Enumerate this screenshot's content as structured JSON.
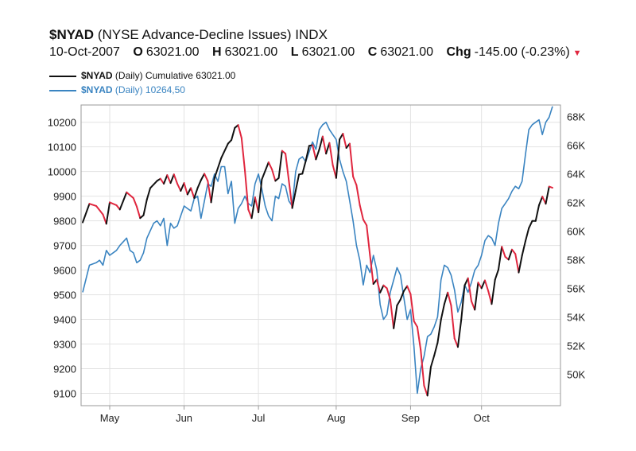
{
  "header": {
    "symbol": "$NYAD",
    "name": "(NYSE Advance-Decline Issues) INDX",
    "date": "10-Oct-2007",
    "o_label": "O",
    "o": "63021.00",
    "h_label": "H",
    "h": "63021.00",
    "l_label": "L",
    "l": "63021.00",
    "c_label": "C",
    "c": "63021.00",
    "chg_label": "Chg",
    "chg": "-145.00 (-0.23%)",
    "down_icon": "triangle-down-icon"
  },
  "legend": [
    {
      "symbol": "$NYAD",
      "text": "(Daily) Cumulative 63021.00",
      "color": "#111111"
    },
    {
      "symbol": "$NYAD",
      "text": "(Daily) 10264,50",
      "color": "#3a84c1"
    }
  ],
  "colors": {
    "up": "#111111",
    "down": "#e0263e",
    "daily": "#3a84c1",
    "grid": "#e2e2e2",
    "frame": "#9a9a9a"
  },
  "chart_data": {
    "type": "line",
    "x_tick_labels": [
      "May",
      "Jun",
      "Jul",
      "Aug",
      "Sep",
      "Oct"
    ],
    "x_tick_positions": [
      8,
      30,
      52,
      75,
      97,
      118
    ],
    "x_range": [
      0,
      139
    ],
    "left_axis": {
      "ticks": [
        9100,
        9200,
        9300,
        9400,
        9500,
        9600,
        9700,
        9800,
        9900,
        10000,
        10100,
        10200
      ],
      "range": [
        9050,
        10270
      ]
    },
    "right_axis": {
      "ticks": [
        50000,
        52000,
        54000,
        56000,
        58000,
        60000,
        62000,
        64000,
        66000,
        68000
      ],
      "labels": [
        "50K",
        "52K",
        "54K",
        "56K",
        "58K",
        "60K",
        "62K",
        "64K",
        "66K",
        "68K"
      ],
      "range": [
        47800,
        68800
      ]
    },
    "grid": true,
    "series": [
      {
        "name": "$NYAD (Daily) Cumulative 63021.00",
        "axis": "right",
        "coloring": "black when rising, red when falling",
        "points": [
          [
            0,
            60600
          ],
          [
            2,
            61900
          ],
          [
            4,
            61750
          ],
          [
            6,
            61150
          ],
          [
            7,
            60500
          ],
          [
            8,
            62000
          ],
          [
            10,
            61800
          ],
          [
            11,
            61500
          ],
          [
            13,
            62700
          ],
          [
            15,
            62300
          ],
          [
            16,
            61700
          ],
          [
            17,
            60900
          ],
          [
            18,
            61100
          ],
          [
            19,
            62200
          ],
          [
            20,
            63000
          ],
          [
            22,
            63500
          ],
          [
            23,
            63650
          ],
          [
            24,
            63300
          ],
          [
            25,
            63900
          ],
          [
            26,
            63350
          ],
          [
            27,
            63950
          ],
          [
            28,
            63300
          ],
          [
            29,
            62800
          ],
          [
            30,
            63350
          ],
          [
            31,
            62550
          ],
          [
            32,
            63000
          ],
          [
            33,
            62300
          ],
          [
            34,
            63000
          ],
          [
            35,
            63550
          ],
          [
            36,
            64000
          ],
          [
            37,
            63500
          ],
          [
            38,
            62000
          ],
          [
            39,
            63700
          ],
          [
            41,
            65100
          ],
          [
            43,
            66100
          ],
          [
            44,
            66350
          ],
          [
            45,
            67200
          ],
          [
            46,
            67400
          ],
          [
            47,
            66500
          ],
          [
            48,
            64200
          ],
          [
            49,
            61500
          ],
          [
            50,
            60900
          ],
          [
            51,
            62350
          ],
          [
            52,
            61300
          ],
          [
            53,
            63600
          ],
          [
            55,
            64800
          ],
          [
            56,
            64300
          ],
          [
            57,
            63500
          ],
          [
            58,
            63700
          ],
          [
            59,
            65600
          ],
          [
            60,
            65400
          ],
          [
            61,
            63500
          ],
          [
            62,
            61600
          ],
          [
            63,
            62800
          ],
          [
            64,
            63950
          ],
          [
            65,
            64000
          ],
          [
            66,
            64900
          ],
          [
            67,
            65950
          ],
          [
            68,
            66000
          ],
          [
            69,
            65000
          ],
          [
            70,
            65700
          ],
          [
            71,
            66600
          ],
          [
            72,
            65400
          ],
          [
            73,
            66150
          ],
          [
            74,
            64600
          ],
          [
            75,
            63700
          ],
          [
            76,
            66400
          ],
          [
            77,
            66800
          ],
          [
            78,
            65800
          ],
          [
            79,
            66100
          ],
          [
            80,
            63800
          ],
          [
            81,
            63200
          ],
          [
            82,
            61800
          ],
          [
            83,
            60800
          ],
          [
            84,
            60400
          ],
          [
            85,
            58300
          ],
          [
            86,
            56300
          ],
          [
            87,
            56600
          ],
          [
            88,
            55700
          ],
          [
            89,
            56200
          ],
          [
            90,
            56000
          ],
          [
            91,
            55200
          ],
          [
            92,
            53200
          ],
          [
            93,
            54800
          ],
          [
            94,
            55200
          ],
          [
            95,
            55800
          ],
          [
            96,
            56150
          ],
          [
            97,
            55600
          ],
          [
            98,
            53700
          ],
          [
            99,
            53300
          ],
          [
            100,
            51700
          ],
          [
            101,
            49200
          ],
          [
            102,
            48500
          ],
          [
            103,
            50500
          ],
          [
            104,
            51300
          ],
          [
            105,
            52200
          ],
          [
            106,
            53800
          ],
          [
            107,
            54900
          ],
          [
            108,
            55700
          ],
          [
            109,
            54800
          ],
          [
            110,
            52500
          ],
          [
            111,
            51900
          ],
          [
            112,
            53800
          ],
          [
            113,
            56200
          ],
          [
            114,
            56700
          ],
          [
            115,
            55100
          ],
          [
            116,
            54500
          ],
          [
            117,
            56400
          ],
          [
            118,
            56000
          ],
          [
            119,
            56550
          ],
          [
            120,
            55800
          ],
          [
            121,
            54900
          ],
          [
            122,
            56600
          ],
          [
            123,
            57300
          ],
          [
            124,
            58900
          ],
          [
            125,
            58200
          ],
          [
            126,
            58000
          ],
          [
            127,
            58700
          ],
          [
            128,
            58400
          ],
          [
            129,
            57100
          ],
          [
            130,
            58300
          ],
          [
            131,
            59300
          ],
          [
            132,
            60200
          ],
          [
            133,
            60700
          ],
          [
            134,
            60700
          ],
          [
            135,
            61800
          ],
          [
            136,
            62400
          ],
          [
            137,
            61900
          ],
          [
            138,
            63100
          ],
          [
            139,
            63021
          ]
        ]
      },
      {
        "name": "$NYAD (Daily) 10264,50",
        "axis": "left",
        "points": [
          [
            0,
            9510
          ],
          [
            2,
            9620
          ],
          [
            4,
            9630
          ],
          [
            5,
            9640
          ],
          [
            6,
            9620
          ],
          [
            7,
            9680
          ],
          [
            8,
            9660
          ],
          [
            10,
            9680
          ],
          [
            11,
            9700
          ],
          [
            13,
            9730
          ],
          [
            14,
            9680
          ],
          [
            15,
            9670
          ],
          [
            16,
            9630
          ],
          [
            17,
            9640
          ],
          [
            18,
            9670
          ],
          [
            19,
            9730
          ],
          [
            21,
            9790
          ],
          [
            22,
            9800
          ],
          [
            23,
            9780
          ],
          [
            24,
            9810
          ],
          [
            25,
            9700
          ],
          [
            26,
            9790
          ],
          [
            27,
            9770
          ],
          [
            28,
            9780
          ],
          [
            30,
            9860
          ],
          [
            31,
            9850
          ],
          [
            32,
            9840
          ],
          [
            33,
            9890
          ],
          [
            34,
            9900
          ],
          [
            35,
            9810
          ],
          [
            36,
            9880
          ],
          [
            37,
            9950
          ],
          [
            38,
            9940
          ],
          [
            39,
            9990
          ],
          [
            40,
            9960
          ],
          [
            41,
            10020
          ],
          [
            42,
            10020
          ],
          [
            43,
            9910
          ],
          [
            44,
            9960
          ],
          [
            45,
            9790
          ],
          [
            46,
            9850
          ],
          [
            47,
            9870
          ],
          [
            48,
            9900
          ],
          [
            49,
            9870
          ],
          [
            50,
            9860
          ],
          [
            51,
            9950
          ],
          [
            52,
            9990
          ],
          [
            53,
            9930
          ],
          [
            54,
            9860
          ],
          [
            55,
            9820
          ],
          [
            56,
            9800
          ],
          [
            57,
            9900
          ],
          [
            58,
            9890
          ],
          [
            59,
            9950
          ],
          [
            60,
            9940
          ],
          [
            61,
            9880
          ],
          [
            62,
            9860
          ],
          [
            63,
            10000
          ],
          [
            64,
            10050
          ],
          [
            65,
            10060
          ],
          [
            66,
            10040
          ],
          [
            67,
            10080
          ],
          [
            68,
            10120
          ],
          [
            69,
            10090
          ],
          [
            70,
            10170
          ],
          [
            71,
            10190
          ],
          [
            72,
            10200
          ],
          [
            73,
            10170
          ],
          [
            74,
            10150
          ],
          [
            75,
            10130
          ],
          [
            76,
            10050
          ],
          [
            77,
            10000
          ],
          [
            78,
            9960
          ],
          [
            79,
            9880
          ],
          [
            80,
            9800
          ],
          [
            81,
            9700
          ],
          [
            82,
            9640
          ],
          [
            83,
            9540
          ],
          [
            84,
            9620
          ],
          [
            85,
            9590
          ],
          [
            86,
            9660
          ],
          [
            87,
            9600
          ],
          [
            88,
            9460
          ],
          [
            89,
            9400
          ],
          [
            90,
            9420
          ],
          [
            91,
            9510
          ],
          [
            92,
            9560
          ],
          [
            93,
            9610
          ],
          [
            94,
            9580
          ],
          [
            95,
            9490
          ],
          [
            96,
            9400
          ],
          [
            97,
            9440
          ],
          [
            98,
            9290
          ],
          [
            99,
            9100
          ],
          [
            100,
            9200
          ],
          [
            101,
            9250
          ],
          [
            102,
            9330
          ],
          [
            103,
            9340
          ],
          [
            104,
            9370
          ],
          [
            105,
            9410
          ],
          [
            106,
            9560
          ],
          [
            107,
            9620
          ],
          [
            108,
            9610
          ],
          [
            109,
            9580
          ],
          [
            110,
            9520
          ],
          [
            111,
            9430
          ],
          [
            112,
            9470
          ],
          [
            113,
            9540
          ],
          [
            114,
            9510
          ],
          [
            115,
            9550
          ],
          [
            116,
            9600
          ],
          [
            117,
            9620
          ],
          [
            118,
            9660
          ],
          [
            119,
            9720
          ],
          [
            120,
            9740
          ],
          [
            121,
            9730
          ],
          [
            122,
            9700
          ],
          [
            123,
            9790
          ],
          [
            124,
            9850
          ],
          [
            125,
            9870
          ],
          [
            126,
            9890
          ],
          [
            127,
            9920
          ],
          [
            128,
            9940
          ],
          [
            129,
            9930
          ],
          [
            130,
            9960
          ],
          [
            131,
            10070
          ],
          [
            132,
            10170
          ],
          [
            133,
            10190
          ],
          [
            134,
            10200
          ],
          [
            135,
            10210
          ],
          [
            136,
            10150
          ],
          [
            137,
            10200
          ],
          [
            138,
            10220
          ],
          [
            139,
            10264.5
          ]
        ]
      }
    ]
  }
}
